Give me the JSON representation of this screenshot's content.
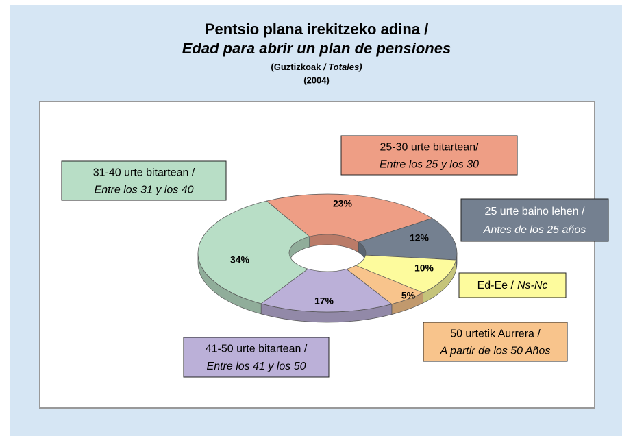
{
  "chart_data": {
    "type": "donut",
    "title": "Pentsio plana irekitzeko adina /",
    "subtitle": "Edad  para abrir un plan de pensiones",
    "note": [
      "(Guztizkoak",
      "/ Totales)"
    ],
    "year": "(2004)",
    "categories": [
      [
        "25-30 urte bitartean/",
        "Entre los 25 y los 30"
      ],
      [
        "25 urte baino lehen /",
        "Antes de los 25 años"
      ],
      [
        "Ed-Ee /",
        "Ns-Nc"
      ],
      [
        "50 urtetik Aurrera /",
        "A partir de los 50 Años"
      ],
      [
        "41-50 urte bitartean /",
        "Entre los 41 y los 50"
      ],
      [
        "31-40 urte bitartean /",
        "Entre los 31 y los 40"
      ]
    ],
    "values": [
      23,
      12,
      10,
      5,
      17,
      34
    ],
    "value_labels": [
      "23%",
      "12%",
      "10%",
      "5%",
      "17%",
      "34%"
    ],
    "colors": [
      "#ee9e85",
      "#748090",
      "#fdfb9d",
      "#f8c48c",
      "#bbb0d8",
      "#b8dec6"
    ]
  }
}
